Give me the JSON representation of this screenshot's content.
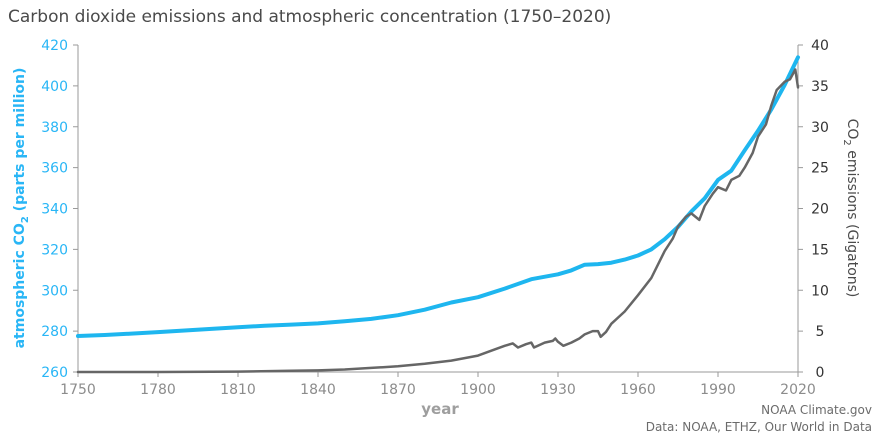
{
  "chart_data": {
    "type": "line",
    "title": "Carbon dioxide emissions and atmospheric concentration (1750–2020)",
    "xlabel": "year",
    "ylabel_left": {
      "main": "atmospheric CO",
      "sub": "2",
      "rest": " (parts per million)"
    },
    "ylabel_right": {
      "main": "CO",
      "sub": "2",
      "rest": " emissions (Gigatons)"
    },
    "xlim": [
      1750,
      2020
    ],
    "ylim_left": [
      260,
      420
    ],
    "ylim_right": [
      0,
      40
    ],
    "x_ticks": [
      "1750",
      "1780",
      "1810",
      "1840",
      "1870",
      "1900",
      "1930",
      "1960",
      "1990",
      "2020"
    ],
    "y_left_ticks": [
      "260",
      "280",
      "300",
      "320",
      "340",
      "360",
      "380",
      "400",
      "420"
    ],
    "y_right_ticks": [
      "0",
      "5",
      "10",
      "15",
      "20",
      "25",
      "30",
      "35",
      "40"
    ],
    "grid": false,
    "series": [
      {
        "axis": "left",
        "color": "#1eb6ef",
        "x": [
          1750,
          1760,
          1770,
          1780,
          1790,
          1800,
          1810,
          1820,
          1830,
          1840,
          1850,
          1860,
          1870,
          1880,
          1890,
          1900,
          1910,
          1920,
          1930,
          1935,
          1940,
          1945,
          1950,
          1955,
          1960,
          1965,
          1970,
          1975,
          1980,
          1985,
          1990,
          1995,
          2000,
          2005,
          2010,
          2015,
          2020
        ],
        "values": [
          277.6,
          278.1,
          278.8,
          279.5,
          280.3,
          281.1,
          281.9,
          282.6,
          283.2,
          283.8,
          284.8,
          286.0,
          287.8,
          290.5,
          294.0,
          296.6,
          300.8,
          305.4,
          307.8,
          309.7,
          312.5,
          312.8,
          313.5,
          315.0,
          317.0,
          320.0,
          325.0,
          331.0,
          338.5,
          345.0,
          354.0,
          358.5,
          368.5,
          378.0,
          388.5,
          400.5,
          414.0
        ]
      },
      {
        "axis": "right",
        "color": "#666666",
        "x": [
          1750,
          1780,
          1810,
          1830,
          1840,
          1850,
          1860,
          1870,
          1880,
          1890,
          1900,
          1905,
          1910,
          1913,
          1915,
          1918,
          1920,
          1921,
          1925,
          1928,
          1929,
          1930,
          1932,
          1935,
          1938,
          1940,
          1943,
          1945,
          1946,
          1948,
          1950,
          1955,
          1960,
          1965,
          1970,
          1973,
          1975,
          1978,
          1980,
          1983,
          1985,
          1988,
          1990,
          1993,
          1995,
          1998,
          2000,
          2003,
          2005,
          2008,
          2010,
          2012,
          2015,
          2017,
          2019,
          2020
        ],
        "values": [
          0.0,
          0.0,
          0.05,
          0.15,
          0.2,
          0.3,
          0.5,
          0.7,
          1.0,
          1.4,
          2.0,
          2.6,
          3.2,
          3.5,
          3.0,
          3.4,
          3.6,
          3.0,
          3.6,
          3.8,
          4.1,
          3.7,
          3.2,
          3.6,
          4.1,
          4.6,
          5.0,
          5.0,
          4.3,
          4.9,
          5.9,
          7.4,
          9.4,
          11.5,
          14.8,
          16.3,
          17.8,
          19.0,
          19.4,
          18.6,
          20.3,
          21.8,
          22.6,
          22.2,
          23.5,
          24.0,
          25.0,
          26.8,
          28.8,
          30.3,
          32.6,
          34.5,
          35.5,
          35.8,
          37.0,
          34.8
        ]
      }
    ],
    "credits": [
      "NOAA Climate.gov",
      "Data: NOAA, ETHZ, Our World in Data"
    ]
  }
}
